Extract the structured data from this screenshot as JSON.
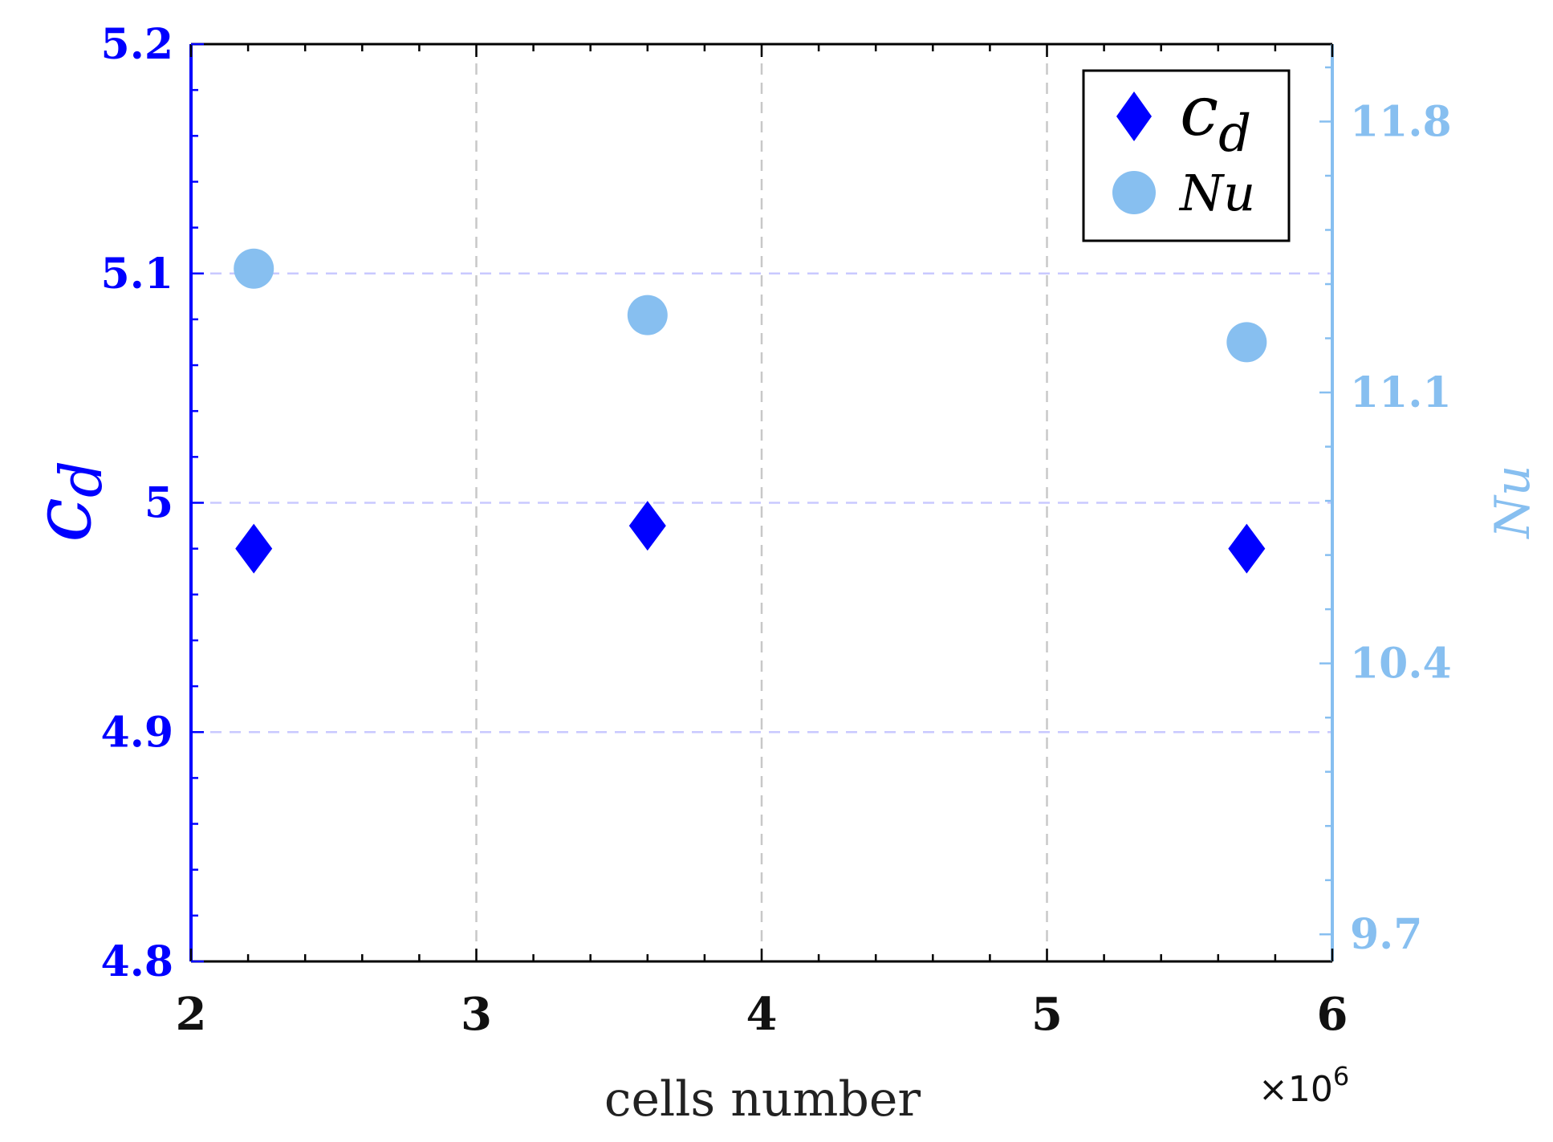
{
  "chart_data": {
    "type": "scatter",
    "title": "",
    "xlabel": "cells number",
    "x_exponent_label": "×10",
    "x_exponent_power": "6",
    "xlim": [
      2,
      6
    ],
    "x_ticks": [
      2,
      3,
      4,
      5,
      6
    ],
    "x_tick_labels": [
      "2",
      "3",
      "4",
      "5",
      "6"
    ],
    "y_left": {
      "label_main": "c",
      "label_sub": "d",
      "lim": [
        4.8,
        5.2
      ],
      "ticks": [
        4.8,
        4.9,
        5.0,
        5.1,
        5.2
      ],
      "tick_labels": [
        "4.8",
        "4.9",
        "5",
        "5.1",
        "5.2"
      ],
      "color": "#0000ff"
    },
    "y_right": {
      "label": "Nu",
      "lim": [
        9.63,
        12.0
      ],
      "ticks": [
        9.7,
        10.4,
        11.1,
        11.8
      ],
      "tick_labels": [
        "9.7",
        "10.4",
        "11.1",
        "11.8"
      ],
      "color": "#87bff0"
    },
    "grid": true,
    "legend_position": "top-right",
    "series": [
      {
        "name": "cd",
        "legend_main": "c",
        "legend_sub": "d",
        "axis": "left",
        "marker": "diamond",
        "color": "#0000ff",
        "x": [
          2.22,
          3.6,
          5.7
        ],
        "y": [
          4.98,
          4.99,
          4.98
        ]
      },
      {
        "name": "Nu",
        "legend_main": "Nu",
        "legend_sub": "",
        "axis": "right",
        "marker": "circle",
        "color": "#87bff0",
        "x": [
          2.22,
          3.6,
          5.7
        ],
        "y": [
          11.42,
          11.3,
          11.23
        ]
      }
    ]
  }
}
